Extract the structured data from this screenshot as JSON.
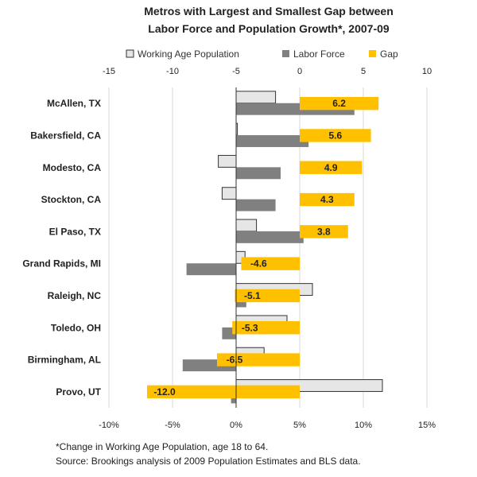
{
  "chart_data": {
    "type": "bar",
    "orientation": "horizontal",
    "title_lines": [
      "Metros with Largest and Smallest Gap between",
      "Labor Force and Population Growth*, 2007-09"
    ],
    "categories": [
      "McAllen, TX",
      "Bakersfield, CA",
      "Modesto, CA",
      "Stockton, CA",
      "El Paso, TX",
      "Grand Rapids, MI",
      "Raleigh, NC",
      "Toledo, OH",
      "Birmingham, AL",
      "Provo, UT"
    ],
    "series": [
      {
        "name": "Working Age Population",
        "axis": "bottom",
        "color": "#e6e6e6",
        "stroke": "#333333",
        "values": [
          3.1,
          0.1,
          -1.4,
          -1.1,
          1.6,
          0.7,
          6.0,
          4.0,
          2.2,
          11.5
        ]
      },
      {
        "name": "Labor Force",
        "axis": "bottom",
        "color": "#808080",
        "stroke": "#808080",
        "values": [
          9.3,
          5.7,
          3.5,
          3.1,
          5.3,
          -3.9,
          0.8,
          -1.1,
          -4.2,
          -0.4
        ]
      },
      {
        "name": "Gap",
        "axis": "top",
        "color": "#ffc000",
        "stroke": "#ffc000",
        "values": [
          6.2,
          5.6,
          4.9,
          4.3,
          3.8,
          -4.6,
          -5.1,
          -5.3,
          -6.5,
          -12.0
        ],
        "data_labels": [
          "6.2",
          "5.6",
          "4.9",
          "4.3",
          "3.8",
          "-4.6",
          "-5.1",
          "-5.3",
          "-6.5",
          "-12.0"
        ]
      }
    ],
    "top_axis": {
      "min": -15,
      "max": 10,
      "ticks": [
        -15,
        -10,
        -5,
        0,
        5,
        10
      ],
      "tick_labels": [
        "-15",
        "-10",
        "-5",
        "0",
        "5",
        "10"
      ]
    },
    "bottom_axis": {
      "min": -10,
      "max": 15,
      "ticks": [
        -10,
        -5,
        0,
        5,
        10,
        15
      ],
      "tick_labels": [
        "-10%",
        "-5%",
        "0%",
        "5%",
        "10%",
        "15%"
      ]
    },
    "gridlines": true,
    "legend_position": "top"
  },
  "footnotes": [
    "*Change in Working Age Population, age 18 to 64.",
    "Source: Brookings analysis of 2009 Population Estimates and BLS data."
  ]
}
